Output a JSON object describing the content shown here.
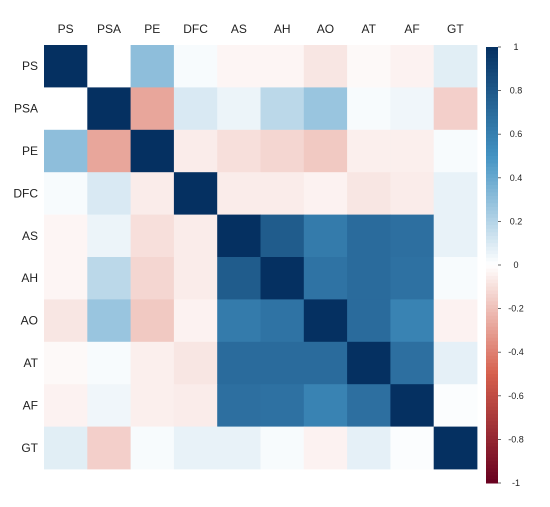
{
  "chart_data": {
    "type": "heatmap",
    "title": "",
    "xlabel": "",
    "ylabel": "",
    "x": [
      "PS",
      "PSA",
      "PE",
      "DFC",
      "AS",
      "AH",
      "AO",
      "AT",
      "AF",
      "GT"
    ],
    "y": [
      "PS",
      "PSA",
      "PE",
      "DFC",
      "AS",
      "AH",
      "AO",
      "AT",
      "AF",
      "GT"
    ],
    "values": [
      [
        1.0,
        0.0,
        0.3,
        0.02,
        -0.03,
        -0.03,
        -0.08,
        -0.02,
        -0.04,
        0.08
      ],
      [
        0.0,
        1.0,
        -0.28,
        0.1,
        0.05,
        0.18,
        0.27,
        0.02,
        0.04,
        -0.15
      ],
      [
        0.3,
        -0.28,
        1.0,
        -0.06,
        -0.1,
        -0.13,
        -0.17,
        -0.05,
        -0.05,
        0.02
      ],
      [
        0.02,
        0.1,
        -0.06,
        1.0,
        -0.06,
        -0.06,
        -0.04,
        -0.08,
        -0.06,
        0.06
      ],
      [
        -0.03,
        0.05,
        -0.1,
        -0.06,
        1.0,
        0.78,
        0.62,
        0.7,
        0.68,
        0.06
      ],
      [
        -0.03,
        0.18,
        -0.13,
        -0.06,
        0.78,
        1.0,
        0.66,
        0.7,
        0.67,
        0.02
      ],
      [
        -0.08,
        0.27,
        -0.17,
        -0.04,
        0.62,
        0.66,
        1.0,
        0.7,
        0.58,
        -0.04
      ],
      [
        -0.02,
        0.02,
        -0.05,
        -0.08,
        0.7,
        0.7,
        0.7,
        1.0,
        0.68,
        0.07
      ],
      [
        -0.04,
        0.04,
        -0.05,
        -0.06,
        0.68,
        0.67,
        0.58,
        0.68,
        1.0,
        0.01
      ],
      [
        0.08,
        -0.15,
        0.02,
        0.06,
        0.06,
        0.02,
        -0.04,
        0.07,
        0.01,
        1.0
      ]
    ],
    "colorbar": {
      "min": -1,
      "max": 1,
      "ticks": [
        "1",
        "0.8",
        "0.6",
        "0.4",
        "0.2",
        "0",
        "-0.2",
        "-0.4",
        "-0.6",
        "-0.8",
        "-1"
      ],
      "tick_values": [
        1,
        0.8,
        0.6,
        0.4,
        0.2,
        0,
        -0.2,
        -0.4,
        -0.6,
        -0.8,
        -1
      ]
    },
    "colors": {
      "negative_end": "#67001f",
      "negative_mid": "#d6604d",
      "neutral": "#ffffff",
      "positive_mid": "#4393c3",
      "positive_end": "#053061"
    },
    "grid": false,
    "legend": "right"
  }
}
